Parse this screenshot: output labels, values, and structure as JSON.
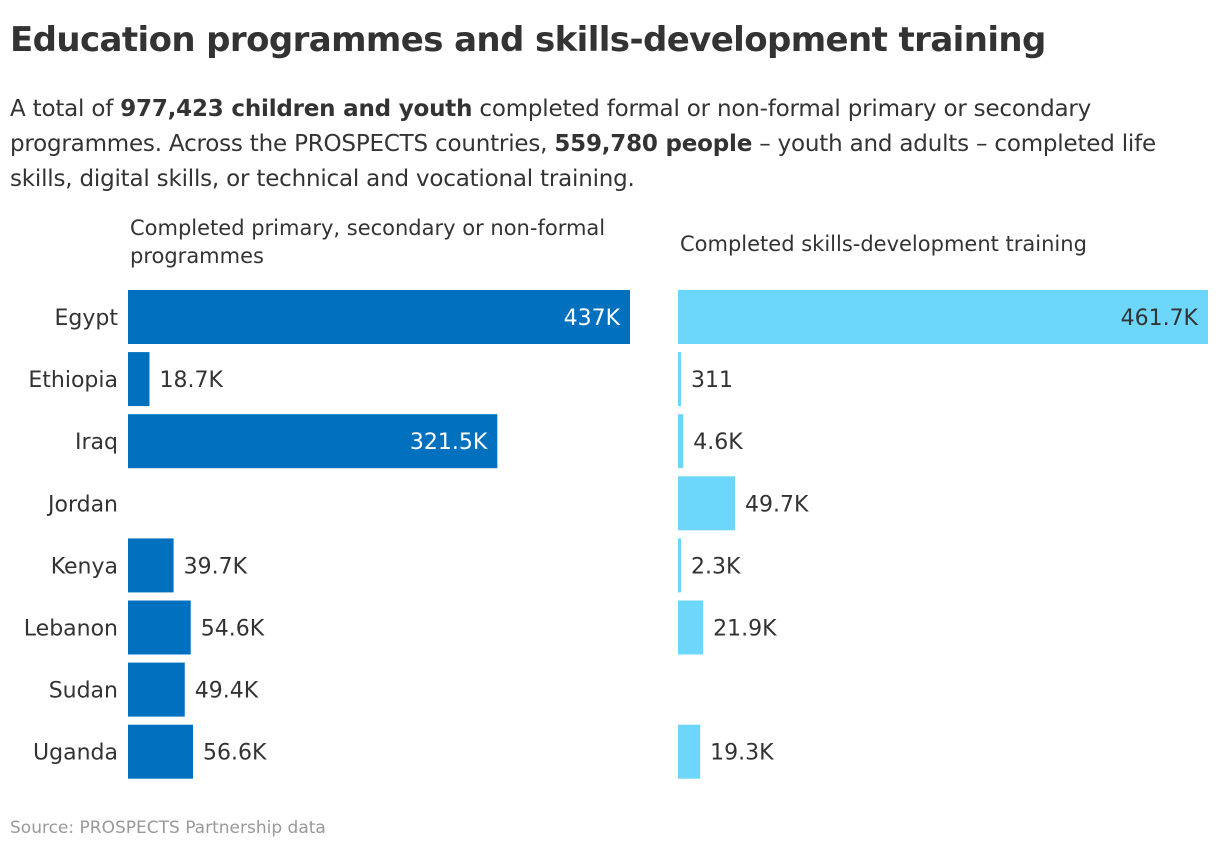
{
  "title": "Education programmes and skills-development training",
  "subtitle": {
    "t1": "A total of ",
    "b1": "977,423 children and youth",
    "t2": " completed formal or non-formal primary or secondary programmes. Across the PROSPECTS countries, ",
    "b2": "559,780 people",
    "t3": " – youth and adults – completed life skills, digital skills, or technical and vocational training."
  },
  "source": "Source: PROSPECTS Partnership data",
  "colors": {
    "primary_series": "#0070bf",
    "skills_series": "#6dd6fb",
    "text": "#333333",
    "source_text": "#999999"
  },
  "chart_data": [
    {
      "type": "bar",
      "orientation": "horizontal",
      "title": "Completed primary, secondary or non-formal programmes",
      "categories": [
        "Egypt",
        "Ethiopia",
        "Iraq",
        "Jordan",
        "Kenya",
        "Lebanon",
        "Sudan",
        "Uganda"
      ],
      "values": [
        437000,
        18700,
        321500,
        null,
        39700,
        54600,
        49400,
        56600
      ],
      "labels": [
        "437K",
        "18.7K",
        "321.5K",
        "",
        "39.7K",
        "54.6K",
        "49.4K",
        "56.6K"
      ],
      "xlim": [
        0,
        437000
      ],
      "grid": false,
      "legend": false
    },
    {
      "type": "bar",
      "orientation": "horizontal",
      "title": "Completed skills-development training",
      "categories": [
        "Egypt",
        "Ethiopia",
        "Iraq",
        "Jordan",
        "Kenya",
        "Lebanon",
        "Sudan",
        "Uganda"
      ],
      "values": [
        461700,
        311,
        4600,
        49700,
        2300,
        21900,
        null,
        19300
      ],
      "labels": [
        "461.7K",
        "311",
        "4.6K",
        "49.7K",
        "2.3K",
        "21.9K",
        "",
        "19.3K"
      ],
      "xlim": [
        0,
        461700
      ],
      "grid": false,
      "legend": false
    }
  ]
}
